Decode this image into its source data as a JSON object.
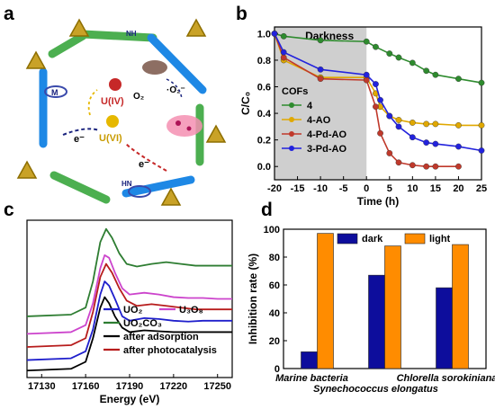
{
  "panel_letters": [
    "a",
    "b",
    "c",
    "d"
  ],
  "schematic": {
    "labels": {
      "u4": "U(IV)",
      "u6": "U(VI)",
      "o2": "O₂",
      "o2_dot": "·O₂⁻",
      "e1": "e⁻",
      "e2": "e⁻",
      "m": "M",
      "nh": "NH",
      "hn": "HN"
    },
    "colors": {
      "node": "#c9a227",
      "linker_green": "#4caf50",
      "linker_blue": "#1e88e5",
      "arrow_red": "#c62828",
      "arrow_blue": "#1a237e",
      "u6": "#e6b800",
      "u4": "#c62828"
    }
  },
  "chart_data": [
    {
      "id": "b",
      "type": "line",
      "xlabel": "Time (h)",
      "ylabel": "C/C₀",
      "xlim": [
        -20,
        25
      ],
      "ylim": [
        -0.1,
        1.05
      ],
      "xticks": [
        -20,
        -15,
        -10,
        -5,
        0,
        5,
        10,
        15,
        20,
        25
      ],
      "yticks": [
        0.0,
        0.2,
        0.4,
        0.6,
        0.8,
        1.0
      ],
      "shaded_region": {
        "x": [
          -20,
          0
        ],
        "label": "Darkness",
        "color": "#cfcfcf"
      },
      "legend": {
        "title": "COFs",
        "position": "bottom-left"
      },
      "series": [
        {
          "name": "4",
          "color": "#2e8b2e",
          "x": [
            -20,
            -18,
            -10,
            0,
            2,
            5,
            7,
            10,
            13,
            15,
            20,
            25
          ],
          "y": [
            1.0,
            0.98,
            0.95,
            0.94,
            0.9,
            0.85,
            0.82,
            0.78,
            0.72,
            0.69,
            0.66,
            0.63
          ]
        },
        {
          "name": "4-AO",
          "color": "#e0a800",
          "x": [
            -20,
            -18,
            -10,
            0,
            2,
            3,
            5,
            7,
            10,
            13,
            15,
            20,
            25
          ],
          "y": [
            1.0,
            0.8,
            0.67,
            0.67,
            0.55,
            0.45,
            0.38,
            0.35,
            0.33,
            0.32,
            0.32,
            0.31,
            0.31
          ]
        },
        {
          "name": "4-Pd-AO",
          "color": "#c0392b",
          "x": [
            -20,
            -18,
            -10,
            0,
            2,
            3,
            5,
            7,
            10,
            13,
            15,
            20
          ],
          "y": [
            1.0,
            0.82,
            0.66,
            0.65,
            0.45,
            0.25,
            0.1,
            0.03,
            0.01,
            0.0,
            0.0,
            0.0
          ]
        },
        {
          "name": "3-Pd-AO",
          "color": "#2222dd",
          "x": [
            -20,
            -18,
            -10,
            0,
            2,
            3,
            5,
            7,
            10,
            13,
            15,
            20,
            25
          ],
          "y": [
            1.0,
            0.86,
            0.73,
            0.69,
            0.62,
            0.5,
            0.38,
            0.3,
            0.22,
            0.18,
            0.17,
            0.15,
            0.12
          ]
        }
      ]
    },
    {
      "id": "c",
      "type": "line",
      "xlabel": "Energy (eV)",
      "ylabel": "",
      "xlim": [
        17120,
        17260
      ],
      "xticks": [
        17130,
        17160,
        17190,
        17220,
        17250
      ],
      "legend": {
        "position": "bottom-left"
      },
      "series": [
        {
          "name": "UO₂",
          "color": "#1f1fcc",
          "x": [
            17120,
            17150,
            17160,
            17165,
            17170,
            17173,
            17176,
            17180,
            17185,
            17190,
            17200,
            17210,
            17220,
            17230,
            17240,
            17250,
            17260
          ],
          "y": [
            0.5,
            0.52,
            0.6,
            0.85,
            1.25,
            1.4,
            1.35,
            1.2,
            1.0,
            0.95,
            0.98,
            0.97,
            0.95,
            0.94,
            0.95,
            0.95,
            0.95
          ]
        },
        {
          "name": "U₃O₈",
          "color": "#cc44cc",
          "x": [
            17120,
            17150,
            17160,
            17165,
            17170,
            17173,
            17176,
            17180,
            17185,
            17190,
            17200,
            17210,
            17220,
            17230,
            17240,
            17250,
            17260
          ],
          "y": [
            0.8,
            0.82,
            0.9,
            1.15,
            1.55,
            1.7,
            1.67,
            1.5,
            1.32,
            1.25,
            1.27,
            1.25,
            1.22,
            1.21,
            1.21,
            1.2,
            1.2
          ]
        },
        {
          "name": "UO₂CO₃",
          "color": "#2e7d32",
          "x": [
            17120,
            17150,
            17160,
            17165,
            17170,
            17174,
            17178,
            17183,
            17188,
            17195,
            17205,
            17215,
            17225,
            17235,
            17245,
            17255,
            17260
          ],
          "y": [
            1.0,
            1.02,
            1.1,
            1.4,
            1.85,
            2.0,
            1.9,
            1.72,
            1.6,
            1.57,
            1.6,
            1.62,
            1.6,
            1.58,
            1.58,
            1.58,
            1.58
          ]
        },
        {
          "name": "after adsorption",
          "color": "#000000",
          "x": [
            17120,
            17150,
            17160,
            17165,
            17170,
            17173,
            17176,
            17180,
            17185,
            17190,
            17200,
            17210,
            17220,
            17230,
            17240,
            17250,
            17260
          ],
          "y": [
            0.38,
            0.4,
            0.48,
            0.75,
            1.1,
            1.22,
            1.15,
            1.0,
            0.87,
            0.82,
            0.84,
            0.83,
            0.82,
            0.82,
            0.82,
            0.82,
            0.82
          ]
        },
        {
          "name": "after photocatalysis",
          "color": "#b71c1c",
          "x": [
            17120,
            17150,
            17160,
            17165,
            17170,
            17174,
            17178,
            17183,
            17188,
            17195,
            17205,
            17215,
            17225,
            17235,
            17245,
            17255,
            17260
          ],
          "y": [
            0.65,
            0.67,
            0.75,
            1.05,
            1.45,
            1.6,
            1.5,
            1.32,
            1.18,
            1.12,
            1.14,
            1.12,
            1.1,
            1.08,
            1.08,
            1.08,
            1.08
          ]
        }
      ]
    },
    {
      "id": "d",
      "type": "bar",
      "ylabel": "Inhibition rate (%)",
      "ylim": [
        0,
        100
      ],
      "yticks": [
        0,
        20,
        40,
        60,
        80,
        100
      ],
      "categories": [
        "Marine bacteria",
        "Synechococcus elongatus",
        "Chlorella sorokiniana"
      ],
      "legend": {
        "position": "top"
      },
      "series": [
        {
          "name": "dark",
          "color": "#0d0d9c",
          "values": [
            12,
            67,
            58
          ]
        },
        {
          "name": "light",
          "color": "#ff8c00",
          "values": [
            97,
            88,
            89
          ]
        }
      ]
    }
  ]
}
